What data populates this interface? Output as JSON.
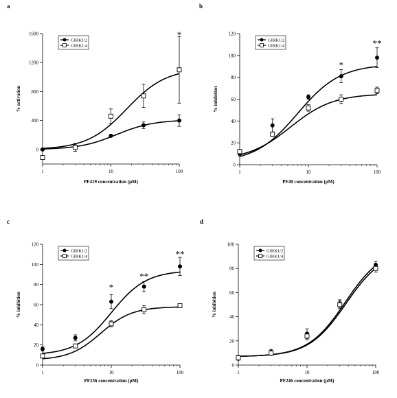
{
  "figure": {
    "background": "#ffffff",
    "ink": "#000000"
  },
  "chart_data": [
    {
      "type": "scatter",
      "panel": "a",
      "title": "",
      "xlabel": "PF419 concentration (μM)",
      "ylabel": "% activation",
      "xscale": "log",
      "xlim": [
        1,
        100
      ],
      "ylim": [
        -200,
        1600
      ],
      "xticks": [
        "1",
        "10",
        "100"
      ],
      "yticks": [
        "0",
        "400",
        "800",
        "1200",
        "1600"
      ],
      "legend": "top-left",
      "series": [
        {
          "name": "GIRK1/2",
          "marker": "filled-circle",
          "x": [
            1,
            3,
            10,
            30,
            100
          ],
          "y": [
            0,
            35,
            190,
            335,
            400
          ],
          "err": [
            0,
            30,
            15,
            45,
            80
          ],
          "fit": {
            "bottom": 0,
            "top": 410,
            "ec50": 12,
            "hill": 1.6
          }
        },
        {
          "name": "GIRK1/4",
          "marker": "open-square",
          "x": [
            1,
            3,
            10,
            30,
            100
          ],
          "y": [
            -110,
            30,
            460,
            740,
            1100
          ],
          "err": [
            0,
            55,
            100,
            160,
            460
          ],
          "fit": {
            "bottom": 0,
            "top": 1120,
            "ec50": 17,
            "hill": 1.5
          }
        }
      ],
      "annotations": [
        {
          "x": 100,
          "y": 1580,
          "text": "*"
        }
      ]
    },
    {
      "type": "scatter",
      "panel": "b",
      "title": "",
      "xlabel": "PF40 concentration (μM)",
      "ylabel": "% inhibition",
      "xscale": "log",
      "xlim": [
        1,
        100
      ],
      "ylim": [
        0,
        120
      ],
      "xticks": [
        "1",
        "10",
        "100"
      ],
      "yticks": [
        "0",
        "20",
        "40",
        "60",
        "80",
        "100",
        "120"
      ],
      "legend": "top-left",
      "series": [
        {
          "name": "GIRK1/2",
          "marker": "filled-circle",
          "x": [
            1,
            3,
            10,
            30,
            100
          ],
          "y": [
            10,
            36,
            62,
            81,
            98
          ],
          "err": [
            2,
            6,
            2,
            6,
            9
          ],
          "fit": {
            "bottom": 2,
            "top": 92,
            "ec50": 7,
            "hill": 1.4
          }
        },
        {
          "name": "GIRK1/4",
          "marker": "open-square",
          "x": [
            1,
            3,
            10,
            30,
            100
          ],
          "y": [
            12,
            28,
            52,
            60,
            68
          ],
          "err": [
            2,
            2,
            3,
            4,
            3
          ],
          "fit": {
            "bottom": 4,
            "top": 65,
            "ec50": 5.5,
            "hill": 1.4
          }
        }
      ],
      "annotations": [
        {
          "x": 30,
          "y": 91,
          "text": "*"
        },
        {
          "x": 100,
          "y": 111,
          "text": "**"
        }
      ]
    },
    {
      "type": "scatter",
      "panel": "c",
      "title": "",
      "xlabel": "PF236 concentration (μM)",
      "ylabel": "% inhibition",
      "xscale": "log",
      "xlim": [
        1,
        100
      ],
      "ylim": [
        0,
        120
      ],
      "xticks": [
        "1",
        "10",
        "100"
      ],
      "yticks": [
        "0",
        "20",
        "40",
        "60",
        "80",
        "100",
        "120"
      ],
      "legend": "top-left",
      "series": [
        {
          "name": "GIRK1/2",
          "marker": "filled-circle",
          "x": [
            1,
            3,
            10,
            30,
            100
          ],
          "y": [
            16,
            27,
            63,
            78,
            98
          ],
          "err": [
            2,
            3,
            7,
            5,
            9
          ],
          "fit": {
            "bottom": 10,
            "top": 94,
            "ec50": 10,
            "hill": 1.7
          }
        },
        {
          "name": "GIRK1/4",
          "marker": "open-square",
          "x": [
            1,
            3,
            10,
            30,
            100
          ],
          "y": [
            9,
            19,
            41,
            55,
            59
          ],
          "err": [
            1,
            1,
            3,
            4,
            2
          ],
          "fit": {
            "bottom": 5,
            "top": 58,
            "ec50": 7,
            "hill": 1.9
          }
        }
      ],
      "annotations": [
        {
          "x": 10,
          "y": 77,
          "text": "*"
        },
        {
          "x": 30,
          "y": 88,
          "text": "**"
        },
        {
          "x": 100,
          "y": 110,
          "text": "**"
        }
      ]
    },
    {
      "type": "scatter",
      "panel": "d",
      "title": "",
      "xlabel": "PF246 concentration (μM)",
      "ylabel": "% inhibition",
      "xscale": "log",
      "xlim": [
        1,
        100
      ],
      "ylim": [
        0,
        100
      ],
      "xticks": [
        "1",
        "10",
        "100"
      ],
      "yticks": [
        "0",
        "20",
        "40",
        "60",
        "80",
        "100"
      ],
      "legend": "top-left",
      "series": [
        {
          "name": "GIRK1/2",
          "marker": "filled-circle",
          "x": [
            1,
            3,
            10,
            30,
            100
          ],
          "y": [
            6,
            11,
            26,
            51,
            83
          ],
          "err": [
            2,
            2,
            4,
            3,
            3
          ],
          "fit": {
            "bottom": 7,
            "top": 97,
            "ec50": 36,
            "hill": 1.6
          }
        },
        {
          "name": "GIRK1/4",
          "marker": "open-square",
          "x": [
            1,
            3,
            10,
            30,
            100
          ],
          "y": [
            6,
            10,
            24,
            50,
            80
          ],
          "err": [
            2,
            2,
            3,
            3,
            3
          ],
          "fit": {
            "bottom": 7,
            "top": 95,
            "ec50": 37,
            "hill": 1.6
          }
        }
      ],
      "annotations": []
    }
  ]
}
